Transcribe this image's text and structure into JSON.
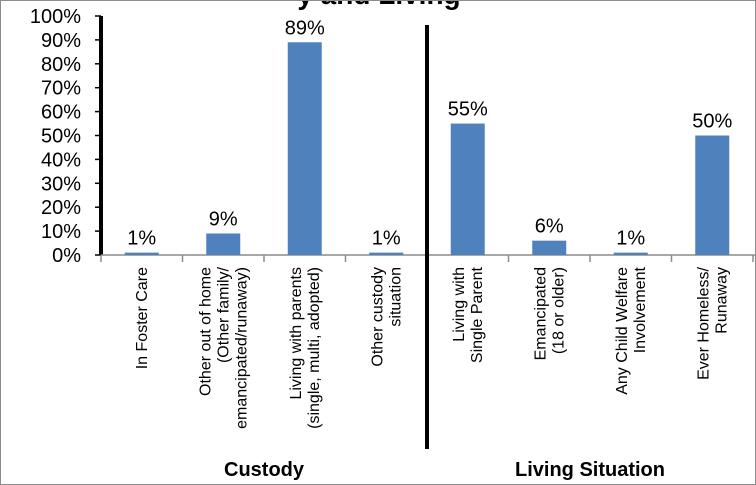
{
  "chart_data": {
    "type": "bar",
    "title": "y and Living",
    "categories": [
      [
        "In Foster Care"
      ],
      [
        "Other out of home",
        "(Other family/",
        "emancipated/runaway)"
      ],
      [
        "Living with parents",
        "(single, multi, adopted)"
      ],
      [
        "Other custody",
        "situation"
      ],
      [
        "Living with",
        "Single Parent"
      ],
      [
        "Emancipated",
        "(18 or older)"
      ],
      [
        "Any Child Welfare",
        "Involvement"
      ],
      [
        "Ever Homeless/",
        "Runaway"
      ]
    ],
    "values": [
      1,
      9,
      89,
      1,
      55,
      6,
      1,
      50
    ],
    "value_labels": [
      "1%",
      "9%",
      "89%",
      "1%",
      "55%",
      "6%",
      "1%",
      "50%"
    ],
    "ylim": [
      0,
      100
    ],
    "yticks": [
      "0%",
      "10%",
      "20%",
      "30%",
      "40%",
      "50%",
      "60%",
      "70%",
      "80%",
      "90%",
      "100%"
    ],
    "groups": [
      {
        "label": "Custody",
        "categories": [
          0,
          1,
          2,
          3
        ]
      },
      {
        "label": "Living Situation",
        "categories": [
          4,
          5,
          6,
          7
        ]
      }
    ],
    "colors": {
      "bar": "#4f81bd"
    },
    "grid": false,
    "legend": "none"
  }
}
